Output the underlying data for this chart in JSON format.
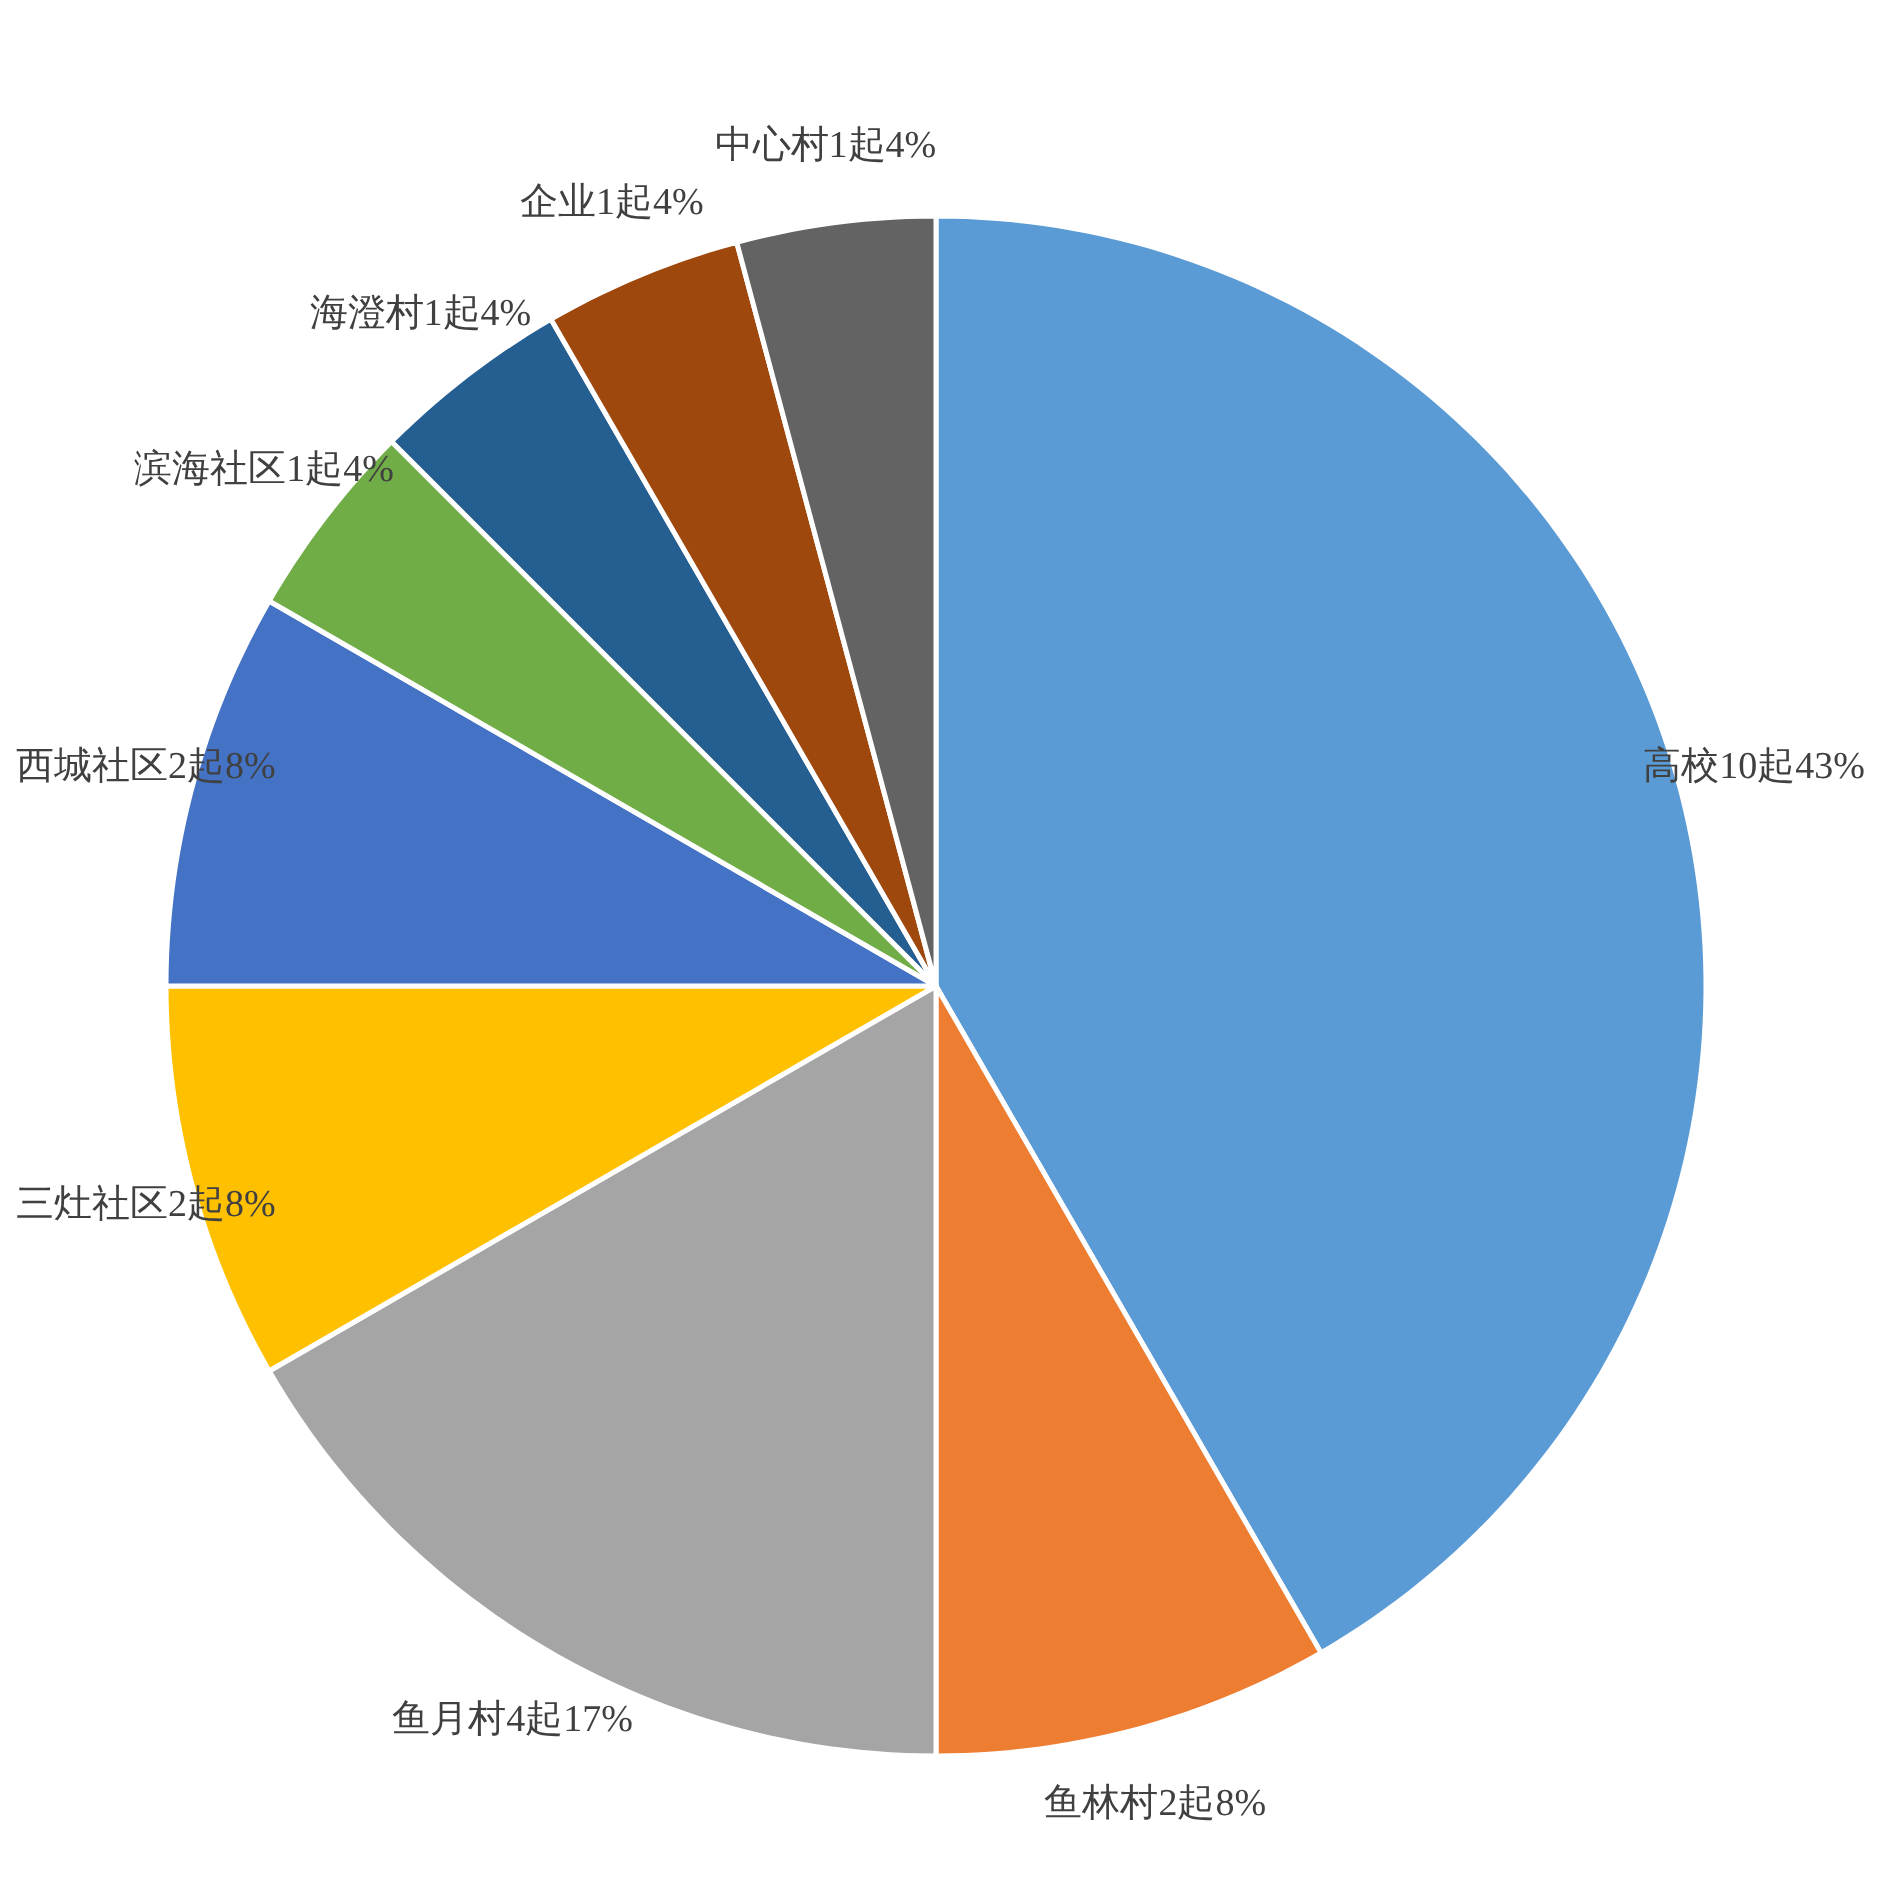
{
  "chart_data": {
    "type": "pie",
    "categories": [
      "高校",
      "鱼林村",
      "鱼月村",
      "三灶社区",
      "西城社区",
      "滨海社区",
      "海澄村",
      "企业",
      "中心村"
    ],
    "values": [
      10,
      2,
      4,
      2,
      2,
      1,
      1,
      1,
      1
    ],
    "value_labels": [
      "10起43%",
      "2起8%",
      "4起17%",
      "2起8%",
      "2起8%",
      "1起4%",
      "1起4%",
      "1起4%",
      "1起4%"
    ],
    "colors": [
      "#5b9bd5",
      "#ed7d31",
      "#a5a5a5",
      "#ffc000",
      "#4472c4",
      "#70ad47",
      "#255e91",
      "#9e480e",
      "#636363"
    ]
  }
}
